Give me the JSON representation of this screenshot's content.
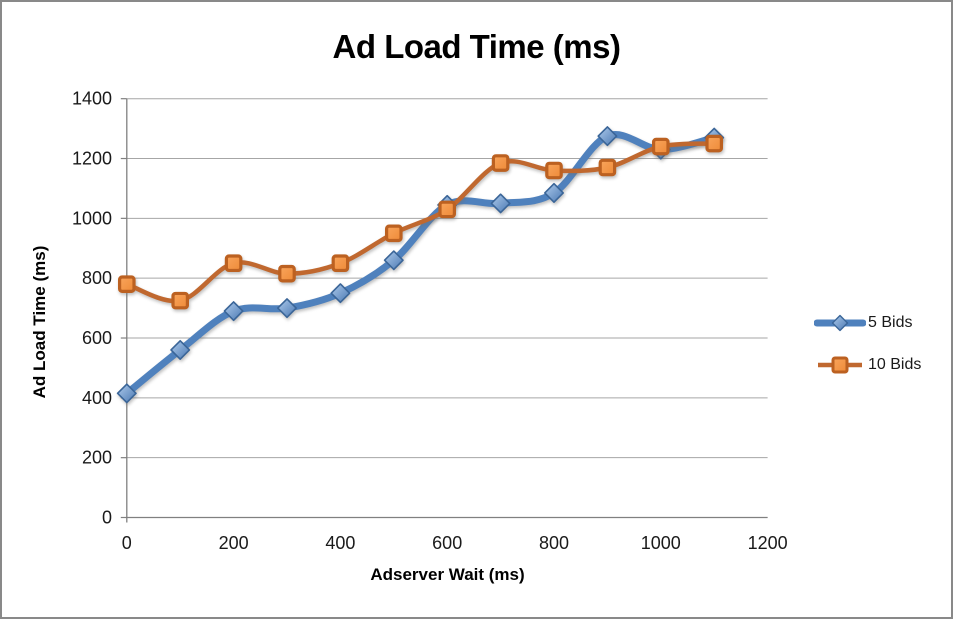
{
  "frame": {
    "border_color": "#898989",
    "background": "#ffffff"
  },
  "chart_data": {
    "type": "line",
    "title": "Ad Load Time (ms)",
    "xlabel": "Adserver Wait (ms)",
    "ylabel": "Ad Load Time (ms)",
    "x": [
      0,
      100,
      200,
      300,
      400,
      500,
      600,
      700,
      800,
      900,
      1000,
      1100
    ],
    "series": [
      {
        "name": "5 Bids",
        "values": [
          415,
          560,
          690,
          700,
          750,
          860,
          1045,
          1050,
          1085,
          1275,
          1230,
          1270
        ],
        "line_color": "#4F81BD",
        "line_width": 7,
        "marker": "diamond",
        "marker_fill_light": "#AECBEC",
        "marker_fill_dark": "#4A78B2",
        "marker_stroke": "#3A6598"
      },
      {
        "name": "10 Bids",
        "values": [
          780,
          725,
          850,
          815,
          850,
          950,
          1030,
          1185,
          1160,
          1170,
          1240,
          1250
        ],
        "line_color": "#C0682F",
        "line_width": 4.5,
        "marker": "square",
        "marker_fill_light": "#F9A55C",
        "marker_fill_dark": "#EE8A38",
        "marker_stroke": "#BC6121"
      }
    ],
    "xlim": [
      0,
      1200
    ],
    "ylim": [
      0,
      1400
    ],
    "x_ticks": [
      0,
      200,
      400,
      600,
      800,
      1000,
      1200
    ],
    "y_ticks": [
      0,
      200,
      400,
      600,
      800,
      1000,
      1200,
      1400
    ],
    "grid": "horizontal",
    "gridline_color": "#A6A6A6",
    "axis_color": "#808080",
    "tick_label_color": "#1a1a1a",
    "legend_position": "right",
    "smoothed": true
  }
}
